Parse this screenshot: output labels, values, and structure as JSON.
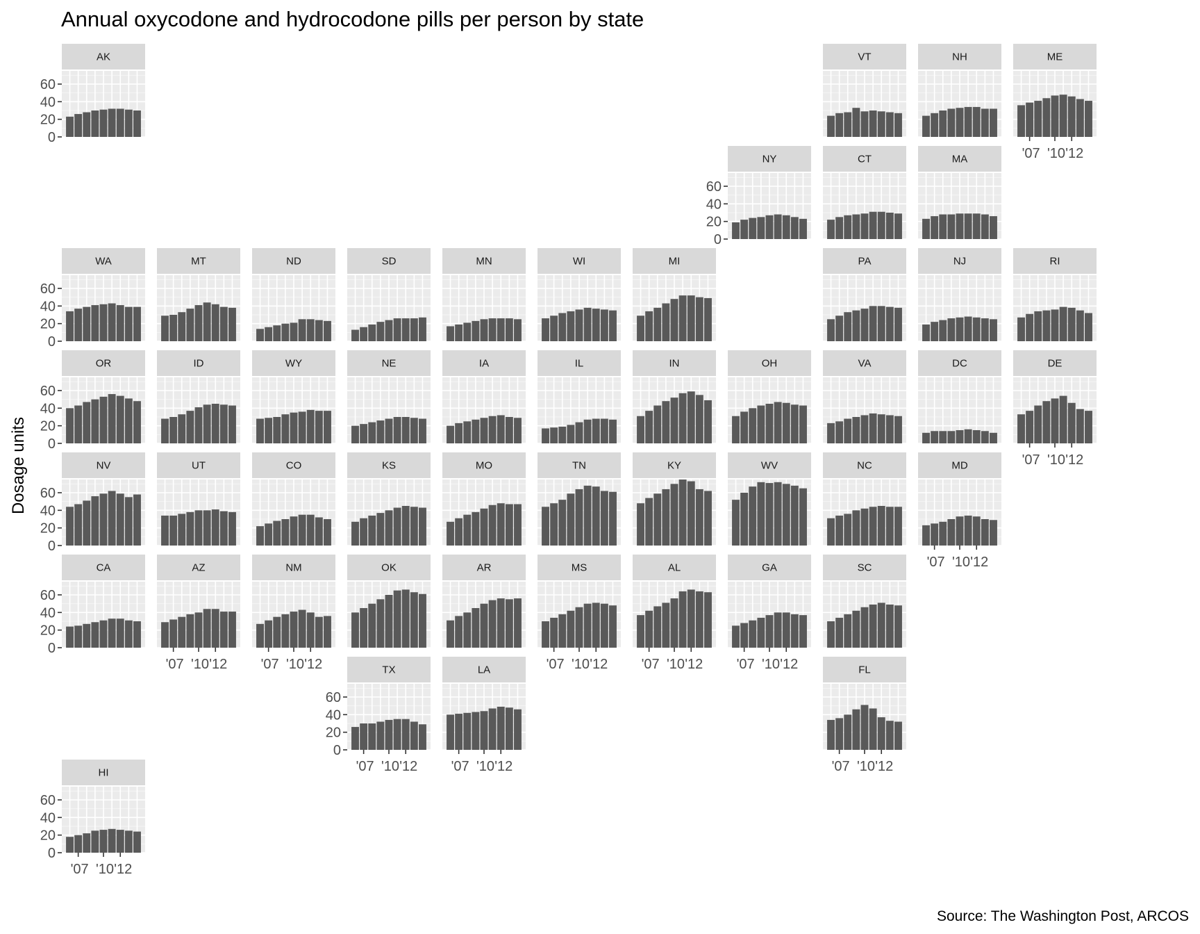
{
  "chart_data": {
    "type": "bar",
    "title": "Annual oxycodone and hydrocodone pills per person by state",
    "ylabel": "Dosage units",
    "caption": "Source: The Washington Post, ARCOS",
    "years": [
      2006,
      2007,
      2008,
      2009,
      2010,
      2011,
      2012,
      2013,
      2014
    ],
    "ylim": [
      0,
      75
    ],
    "y_ticks": [
      0,
      20,
      40,
      60
    ],
    "x_tick_labels": [
      "'07",
      "'10",
      "'12"
    ],
    "grid": true,
    "panels": [
      {
        "state": "AK",
        "values": [
          23,
          26,
          28,
          30,
          31,
          32,
          32,
          31,
          30
        ]
      },
      {
        "state": "VT",
        "values": [
          24,
          27,
          28,
          33,
          29,
          30,
          29,
          28,
          27
        ]
      },
      {
        "state": "NH",
        "values": [
          24,
          27,
          30,
          32,
          33,
          34,
          34,
          32,
          32
        ]
      },
      {
        "state": "ME",
        "values": [
          36,
          39,
          41,
          44,
          47,
          48,
          46,
          43,
          41
        ]
      },
      {
        "state": "NY",
        "values": [
          19,
          22,
          24,
          25,
          27,
          28,
          27,
          25,
          23
        ]
      },
      {
        "state": "CT",
        "values": [
          22,
          25,
          27,
          28,
          29,
          31,
          31,
          30,
          29
        ]
      },
      {
        "state": "MA",
        "values": [
          23,
          26,
          28,
          28,
          29,
          29,
          29,
          28,
          26
        ]
      },
      {
        "state": "WA",
        "values": [
          34,
          37,
          39,
          41,
          42,
          43,
          41,
          39,
          39
        ]
      },
      {
        "state": "MT",
        "values": [
          29,
          30,
          33,
          37,
          41,
          44,
          42,
          39,
          38
        ]
      },
      {
        "state": "ND",
        "values": [
          14,
          16,
          18,
          20,
          21,
          25,
          25,
          24,
          23
        ]
      },
      {
        "state": "SD",
        "values": [
          13,
          16,
          19,
          22,
          24,
          26,
          26,
          26,
          27
        ]
      },
      {
        "state": "MN",
        "values": [
          17,
          19,
          21,
          23,
          25,
          26,
          26,
          26,
          25
        ]
      },
      {
        "state": "WI",
        "values": [
          26,
          29,
          32,
          34,
          36,
          38,
          37,
          36,
          35
        ]
      },
      {
        "state": "MI",
        "values": [
          29,
          34,
          38,
          43,
          48,
          52,
          52,
          50,
          49
        ]
      },
      {
        "state": "PA",
        "values": [
          25,
          29,
          33,
          35,
          37,
          40,
          40,
          39,
          38
        ]
      },
      {
        "state": "NJ",
        "values": [
          19,
          22,
          24,
          26,
          27,
          28,
          27,
          26,
          25
        ]
      },
      {
        "state": "RI",
        "values": [
          27,
          31,
          34,
          35,
          36,
          39,
          38,
          35,
          32
        ]
      },
      {
        "state": "OR",
        "values": [
          40,
          43,
          47,
          50,
          53,
          56,
          54,
          51,
          48
        ]
      },
      {
        "state": "ID",
        "values": [
          28,
          30,
          33,
          37,
          41,
          44,
          45,
          44,
          43
        ]
      },
      {
        "state": "WY",
        "values": [
          28,
          29,
          30,
          33,
          35,
          36,
          38,
          37,
          37
        ]
      },
      {
        "state": "NE",
        "values": [
          20,
          22,
          24,
          26,
          28,
          30,
          30,
          29,
          28
        ]
      },
      {
        "state": "IA",
        "values": [
          20,
          23,
          25,
          27,
          29,
          31,
          32,
          30,
          29
        ]
      },
      {
        "state": "IL",
        "values": [
          17,
          18,
          19,
          21,
          24,
          27,
          28,
          28,
          27
        ]
      },
      {
        "state": "IN",
        "values": [
          31,
          37,
          43,
          48,
          52,
          57,
          59,
          55,
          49
        ]
      },
      {
        "state": "OH",
        "values": [
          31,
          36,
          40,
          43,
          45,
          47,
          46,
          44,
          43
        ]
      },
      {
        "state": "VA",
        "values": [
          23,
          25,
          28,
          30,
          32,
          34,
          33,
          32,
          31
        ]
      },
      {
        "state": "DC",
        "values": [
          12,
          14,
          14,
          14,
          15,
          16,
          15,
          14,
          12
        ]
      },
      {
        "state": "DE",
        "values": [
          33,
          37,
          43,
          48,
          51,
          54,
          46,
          39,
          37
        ]
      },
      {
        "state": "NV",
        "values": [
          44,
          47,
          51,
          56,
          59,
          62,
          59,
          55,
          58
        ]
      },
      {
        "state": "UT",
        "values": [
          34,
          34,
          36,
          38,
          40,
          40,
          41,
          39,
          38
        ]
      },
      {
        "state": "CO",
        "values": [
          22,
          25,
          28,
          30,
          33,
          35,
          35,
          32,
          30
        ]
      },
      {
        "state": "KS",
        "values": [
          27,
          31,
          34,
          37,
          40,
          43,
          45,
          44,
          43
        ]
      },
      {
        "state": "MO",
        "values": [
          27,
          31,
          35,
          38,
          42,
          46,
          48,
          47,
          47
        ]
      },
      {
        "state": "TN",
        "values": [
          44,
          48,
          52,
          59,
          64,
          68,
          67,
          62,
          61
        ]
      },
      {
        "state": "KY",
        "values": [
          48,
          54,
          59,
          64,
          70,
          75,
          73,
          64,
          62
        ]
      },
      {
        "state": "WV",
        "values": [
          52,
          60,
          67,
          72,
          71,
          72,
          70,
          68,
          65
        ]
      },
      {
        "state": "NC",
        "values": [
          31,
          34,
          36,
          40,
          42,
          44,
          45,
          44,
          44
        ]
      },
      {
        "state": "MD",
        "values": [
          23,
          25,
          27,
          30,
          33,
          34,
          33,
          30,
          29
        ]
      },
      {
        "state": "CA",
        "values": [
          24,
          25,
          27,
          29,
          31,
          33,
          33,
          31,
          30
        ]
      },
      {
        "state": "AZ",
        "values": [
          29,
          32,
          35,
          38,
          40,
          44,
          44,
          41,
          41
        ]
      },
      {
        "state": "NM",
        "values": [
          27,
          31,
          35,
          38,
          41,
          43,
          40,
          35,
          36
        ]
      },
      {
        "state": "OK",
        "values": [
          40,
          45,
          50,
          55,
          60,
          65,
          66,
          63,
          61
        ]
      },
      {
        "state": "AR",
        "values": [
          31,
          36,
          40,
          45,
          50,
          54,
          56,
          55,
          56
        ]
      },
      {
        "state": "MS",
        "values": [
          30,
          34,
          38,
          42,
          46,
          50,
          51,
          50,
          48
        ]
      },
      {
        "state": "AL",
        "values": [
          37,
          42,
          47,
          51,
          56,
          64,
          66,
          64,
          63
        ]
      },
      {
        "state": "GA",
        "values": [
          25,
          28,
          31,
          34,
          37,
          40,
          40,
          38,
          37
        ]
      },
      {
        "state": "SC",
        "values": [
          30,
          34,
          38,
          42,
          46,
          49,
          51,
          49,
          48
        ]
      },
      {
        "state": "TX",
        "values": [
          26,
          30,
          30,
          32,
          34,
          35,
          35,
          32,
          29
        ]
      },
      {
        "state": "LA",
        "values": [
          40,
          41,
          42,
          43,
          44,
          47,
          49,
          48,
          46
        ]
      },
      {
        "state": "FL",
        "values": [
          34,
          36,
          40,
          46,
          51,
          47,
          37,
          33,
          32
        ]
      },
      {
        "state": "HI",
        "values": [
          18,
          20,
          22,
          25,
          26,
          27,
          26,
          25,
          24
        ]
      }
    ]
  }
}
